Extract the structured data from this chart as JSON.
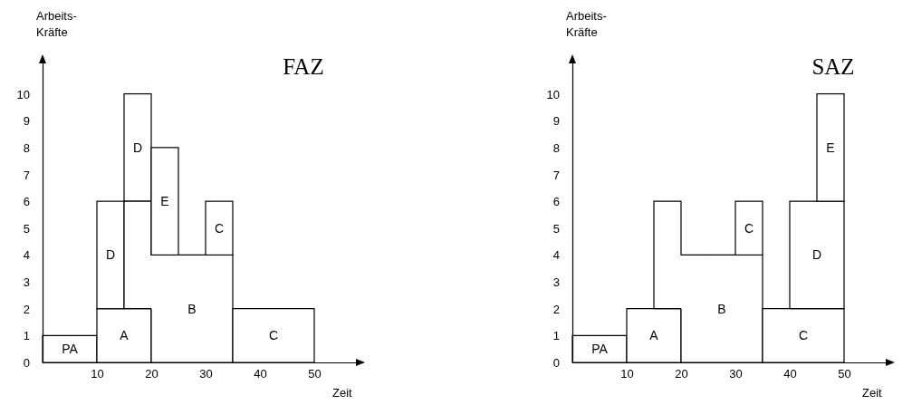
{
  "chart_data": [
    {
      "type": "bar",
      "title": "FAZ",
      "xlabel": "Zeit",
      "ylabel": "Arbeits-\nKräfte",
      "xlim": [
        0,
        58
      ],
      "ylim": [
        0,
        11.2
      ],
      "xticks": [
        10,
        20,
        30,
        40,
        50
      ],
      "yticks": [
        0,
        1,
        2,
        3,
        4,
        5,
        6,
        7,
        8,
        9,
        10
      ],
      "series": [
        {
          "name": "PA",
          "color": "#000000",
          "x": [
            2.5,
            7.5
          ],
          "values": [
            1,
            1
          ],
          "base": [
            0,
            0
          ]
        },
        {
          "name": "A",
          "color": "#000000",
          "x": [
            12.5,
            17.5
          ],
          "values": [
            2,
            2
          ],
          "base": [
            0,
            0
          ]
        },
        {
          "name": "D",
          "color": "#000000",
          "x": [
            12.5,
            17.5
          ],
          "values": [
            4,
            4
          ],
          "base": [
            2,
            6
          ]
        },
        {
          "name": "B",
          "color": "#000000",
          "x": [
            17.5,
            22.5,
            27.5,
            32.5
          ],
          "values": [
            4,
            4,
            4,
            4
          ],
          "base": [
            2,
            0,
            0,
            0
          ]
        },
        {
          "name": "E",
          "color": "#000000",
          "x": [
            22.5
          ],
          "values": [
            4
          ],
          "base": [
            4
          ]
        },
        {
          "name": "C",
          "color": "#000000",
          "x": [
            32.5,
            37.5,
            42.5,
            47.5
          ],
          "values": [
            2,
            2,
            2,
            2
          ],
          "base": [
            4,
            0,
            0,
            0
          ]
        }
      ]
    },
    {
      "type": "bar",
      "title": "SAZ",
      "xlabel": "Zeit",
      "ylabel": "Arbeits-\nKräfte",
      "xlim": [
        0,
        58
      ],
      "ylim": [
        0,
        11.2
      ],
      "xticks": [
        10,
        20,
        30,
        40,
        50
      ],
      "yticks": [
        0,
        1,
        2,
        3,
        4,
        5,
        6,
        7,
        8,
        9,
        10
      ],
      "series": [
        {
          "name": "PA",
          "color": "#000000",
          "x": [
            2.5,
            7.5
          ],
          "values": [
            1,
            1
          ],
          "base": [
            0,
            0
          ]
        },
        {
          "name": "A",
          "color": "#000000",
          "x": [
            12.5,
            17.5
          ],
          "values": [
            2,
            2
          ],
          "base": [
            0,
            0
          ]
        },
        {
          "name": "B",
          "color": "#000000",
          "x": [
            17.5,
            22.5,
            27.5,
            32.5
          ],
          "values": [
            4,
            4,
            4,
            4
          ],
          "base": [
            2,
            0,
            0,
            0
          ]
        },
        {
          "name": "C",
          "color": "#000000",
          "x": [
            32.5,
            37.5,
            42.5,
            47.5
          ],
          "values": [
            2,
            2,
            2,
            2
          ],
          "base": [
            4,
            0,
            0,
            0
          ]
        },
        {
          "name": "D",
          "color": "#000000",
          "x": [
            42.5,
            47.5
          ],
          "values": [
            4,
            4
          ],
          "base": [
            2,
            2
          ]
        },
        {
          "name": "E",
          "color": "#000000",
          "x": [
            47.5
          ],
          "values": [
            4
          ],
          "base": [
            6
          ]
        }
      ]
    }
  ]
}
